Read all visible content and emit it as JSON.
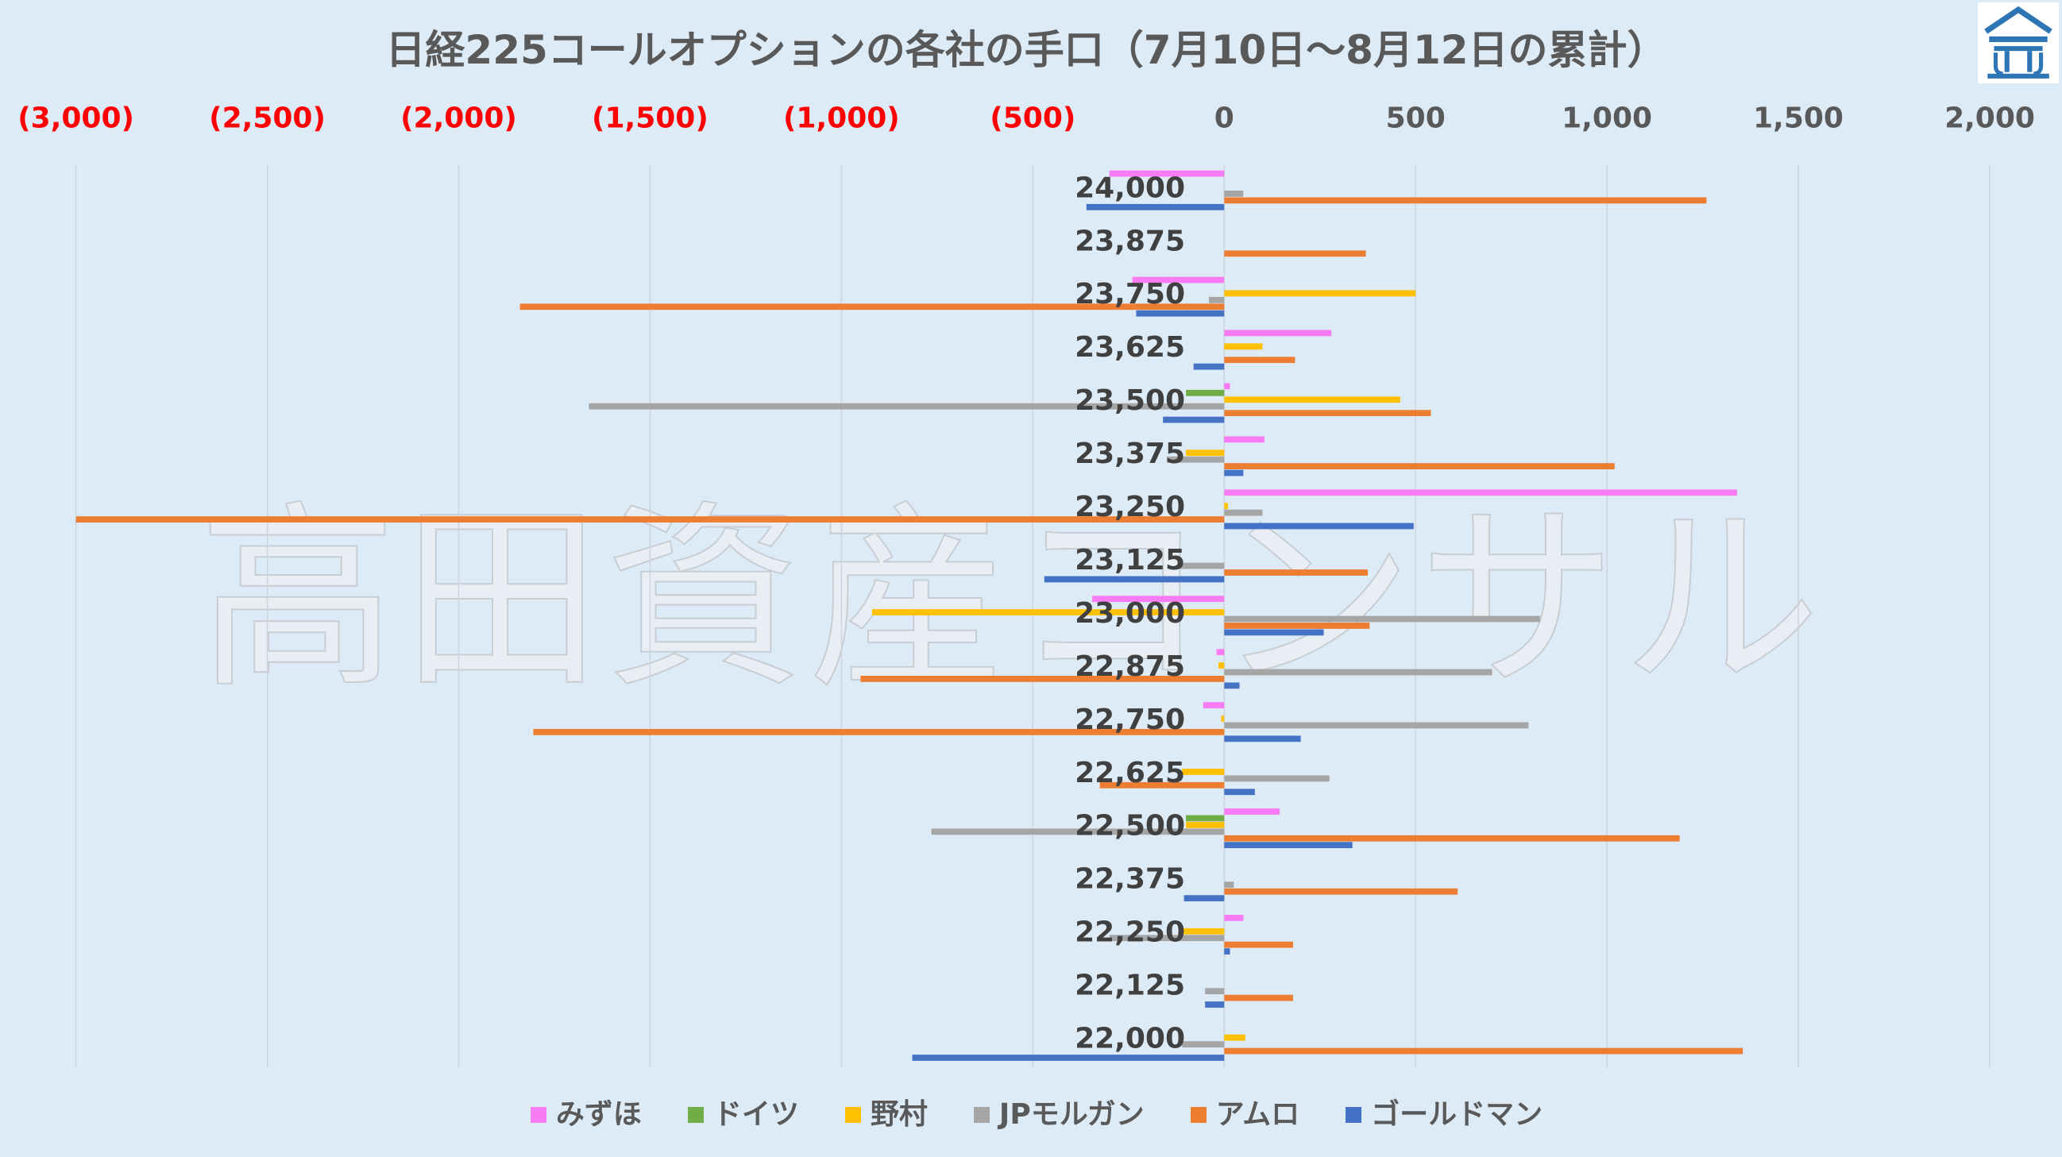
{
  "watermark": "高田資産コンサル",
  "colors": {
    "background": "#DDEBF7",
    "title": "#595959",
    "category_label": "#404040",
    "gridline": "#CDD4DC",
    "logo": "#2E75B6"
  },
  "chart_data": {
    "type": "bar",
    "orientation": "horizontal",
    "title": "日経225コールオプションの各社の手口（7月10日～8月12日の累計）",
    "xlabel": "",
    "ylabel": "",
    "xlim": [
      -3000,
      2000
    ],
    "x_ticks": [
      -3000,
      -2500,
      -2000,
      -1500,
      -1000,
      -500,
      0,
      500,
      1000,
      1500,
      2000
    ],
    "x_tick_labels": [
      "(3,000)",
      "(2,500)",
      "(2,000)",
      "(1,500)",
      "(1,000)",
      "(500)",
      "0",
      "500",
      "1,000",
      "1,500",
      "2,000"
    ],
    "tick_colors": {
      "negative": "#FF0000",
      "positive": "#595959"
    },
    "x_axis_position": "top",
    "grid": "vertical",
    "legend_position": "bottom",
    "categories": [
      "24,000",
      "23,875",
      "23,750",
      "23,625",
      "23,500",
      "23,375",
      "23,250",
      "23,125",
      "23,000",
      "22,875",
      "22,750",
      "22,625",
      "22,500",
      "22,375",
      "22,250",
      "22,125",
      "22,000"
    ],
    "series": [
      {
        "name": "みずほ",
        "color": "#F77CF3",
        "values": [
          -300,
          0,
          -240,
          280,
          15,
          105,
          1340,
          0,
          -345,
          -20,
          -55,
          0,
          145,
          0,
          50,
          0,
          0
        ]
      },
      {
        "name": "ドイツ",
        "color": "#70AD47",
        "values": [
          0,
          0,
          0,
          0,
          -100,
          0,
          0,
          0,
          0,
          0,
          0,
          0,
          -100,
          0,
          0,
          0,
          0
        ]
      },
      {
        "name": "野村",
        "color": "#FFC000",
        "values": [
          0,
          0,
          500,
          100,
          460,
          -100,
          10,
          0,
          -920,
          -15,
          -8,
          -110,
          -100,
          0,
          -110,
          0,
          55
        ]
      },
      {
        "name": "JPモルガン",
        "color": "#A5A5A5",
        "values": [
          50,
          0,
          -40,
          0,
          -1660,
          -150,
          100,
          -120,
          825,
          700,
          795,
          275,
          -765,
          25,
          -300,
          -50,
          -110
        ]
      },
      {
        "name": "アムロ",
        "color": "#ED7D31",
        "values": [
          1260,
          370,
          -1840,
          185,
          540,
          1020,
          -3000,
          375,
          380,
          -950,
          -1805,
          -325,
          1190,
          610,
          180,
          180,
          1355
        ]
      },
      {
        "name": "ゴールドマン",
        "color": "#4472C4",
        "values": [
          -360,
          0,
          -230,
          -80,
          -160,
          50,
          495,
          -470,
          260,
          40,
          200,
          80,
          335,
          -105,
          15,
          -50,
          -815
        ]
      }
    ]
  }
}
